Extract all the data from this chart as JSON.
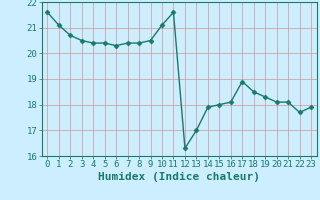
{
  "x": [
    0,
    1,
    2,
    3,
    4,
    5,
    6,
    7,
    8,
    9,
    10,
    11,
    12,
    13,
    14,
    15,
    16,
    17,
    18,
    19,
    20,
    21,
    22,
    23
  ],
  "y": [
    21.6,
    21.1,
    20.7,
    20.5,
    20.4,
    20.4,
    20.3,
    20.4,
    20.4,
    20.5,
    21.1,
    21.6,
    16.3,
    17.0,
    17.9,
    18.0,
    18.1,
    18.9,
    18.5,
    18.3,
    18.1,
    18.1,
    17.7,
    17.9
  ],
  "line_color": "#1a7a6a",
  "marker": "D",
  "marker_size": 2.5,
  "line_width": 1.0,
  "bg_color": "#cceeff",
  "grid_color": "#d08080",
  "xlabel": "Humidex (Indice chaleur)",
  "xlabel_fontsize": 8,
  "tick_fontsize": 6.5,
  "ylim": [
    16,
    22
  ],
  "xlim": [
    -0.5,
    23.5
  ],
  "yticks": [
    16,
    17,
    18,
    19,
    20,
    21,
    22
  ],
  "xticks": [
    0,
    1,
    2,
    3,
    4,
    5,
    6,
    7,
    8,
    9,
    10,
    11,
    12,
    13,
    14,
    15,
    16,
    17,
    18,
    19,
    20,
    21,
    22,
    23
  ]
}
